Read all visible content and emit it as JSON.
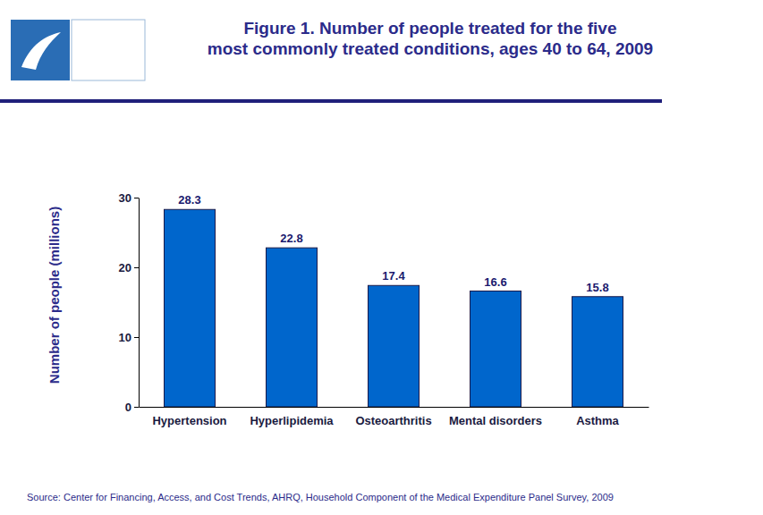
{
  "chart_data": {
    "type": "bar",
    "title": "Figure 1. Number of people treated for the five\nmost commonly  treated conditions, ages 40 to 64, 2009",
    "y_label": "Number of people (millions)",
    "categories": [
      "Hypertension",
      "Hyperlipidemia",
      "Osteoarthritis",
      "Mental disorders",
      "Asthma"
    ],
    "values": [
      28.3,
      22.8,
      17.4,
      16.6,
      15.8
    ],
    "color": "#0066cc",
    "ylim": [
      0,
      30
    ],
    "yticks": [
      0,
      10,
      20,
      30
    ],
    "grid": false,
    "data_labels": true,
    "source": "Source: Center for Financing, Access, and Cost Trends, AHRQ, Household Component of the Medical Expenditure Panel Survey,  2009"
  }
}
